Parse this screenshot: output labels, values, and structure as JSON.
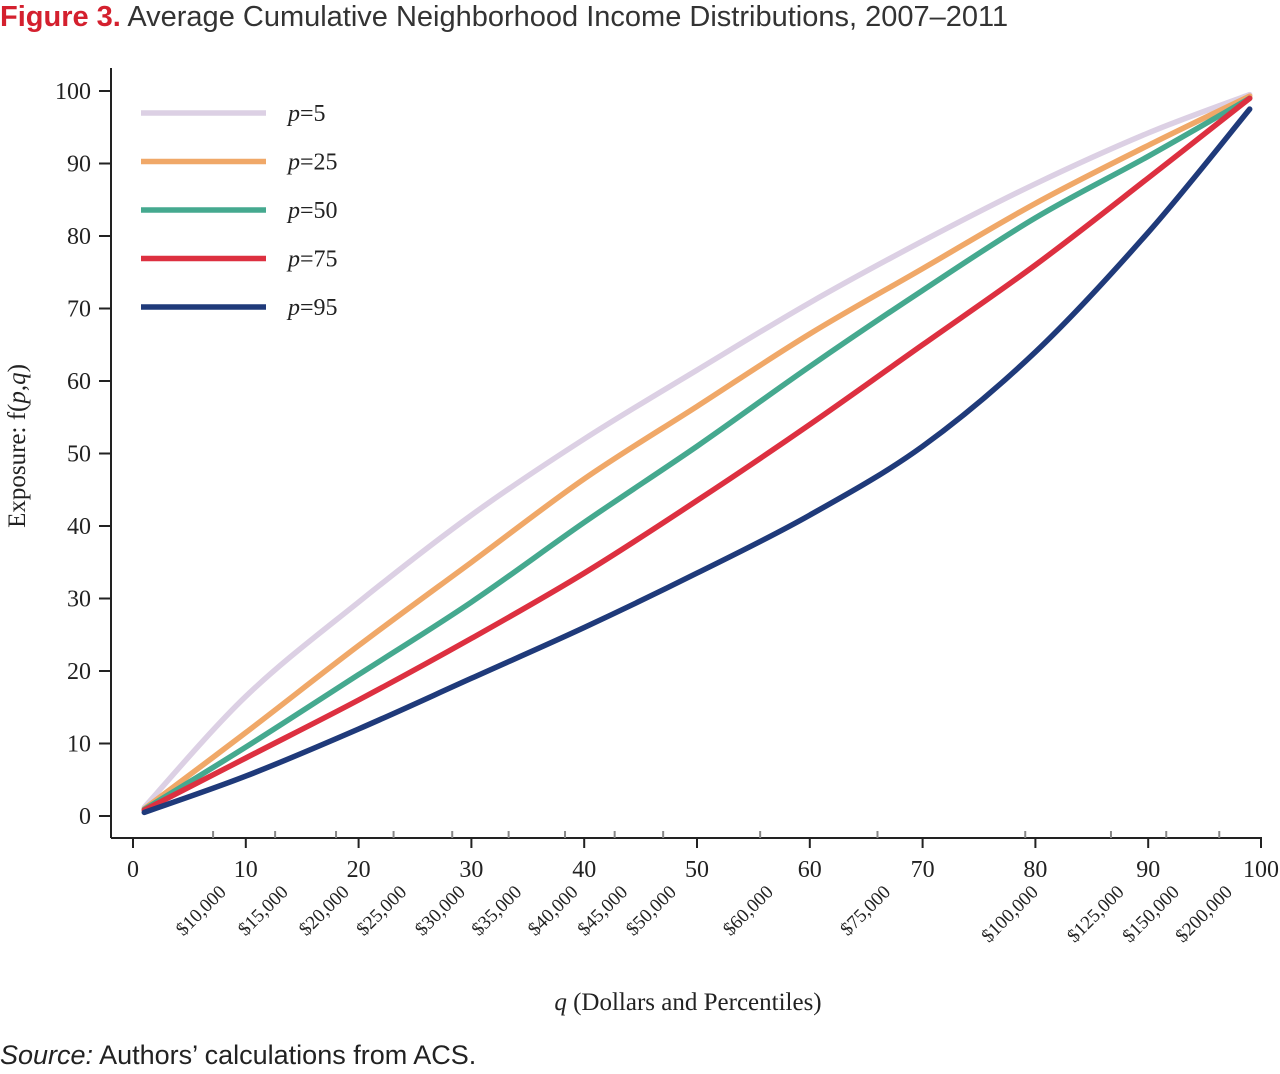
{
  "figure": {
    "label": "Figure 3.",
    "title": "Average Cumulative Neighborhood Income Distributions, 2007–2011",
    "source_label": "Source:",
    "source_text": "Authors’ calculations from ACS."
  },
  "chart_data": {
    "type": "line",
    "title": "Average Cumulative Neighborhood Income Distributions, 2007–2011",
    "xlabel": "q (Dollars and Percentiles)",
    "ylabel": "Exposure: f(p,q)",
    "xlim": [
      0,
      100
    ],
    "ylim": [
      0,
      100
    ],
    "x_ticks": [
      0,
      10,
      20,
      30,
      40,
      50,
      60,
      70,
      80,
      90,
      100
    ],
    "y_ticks": [
      0,
      10,
      20,
      30,
      40,
      50,
      60,
      70,
      80,
      90,
      100
    ],
    "dollar_ticks": [
      {
        "x": 7.1,
        "label": "$10,000"
      },
      {
        "x": 12.6,
        "label": "$15,000"
      },
      {
        "x": 18.0,
        "label": "$20,000"
      },
      {
        "x": 23.1,
        "label": "$25,000"
      },
      {
        "x": 28.3,
        "label": "$30,000"
      },
      {
        "x": 33.3,
        "label": "$35,000"
      },
      {
        "x": 38.3,
        "label": "$40,000"
      },
      {
        "x": 42.7,
        "label": "$45,000"
      },
      {
        "x": 47.0,
        "label": "$50,000"
      },
      {
        "x": 55.6,
        "label": "$60,000"
      },
      {
        "x": 66.0,
        "label": "$75,000"
      },
      {
        "x": 79.1,
        "label": "$100,000"
      },
      {
        "x": 86.7,
        "label": "$125,000"
      },
      {
        "x": 91.6,
        "label": "$150,000"
      },
      {
        "x": 96.3,
        "label": "$200,000"
      }
    ],
    "grid": false,
    "legend_position": "top-left",
    "series": [
      {
        "name": "p=5",
        "p_label": "p",
        "p_value": "=5",
        "color": "#dcd0e4",
        "x": [
          1,
          10,
          20,
          30,
          40,
          50,
          60,
          70,
          80,
          90,
          99
        ],
        "y": [
          1.2,
          16.5,
          29.5,
          41.5,
          52.0,
          61.5,
          70.8,
          79.3,
          87.2,
          94.2,
          99.5
        ]
      },
      {
        "name": "p=25",
        "p_label": "p",
        "p_value": "=25",
        "color": "#f0a868",
        "x": [
          1,
          10,
          20,
          30,
          40,
          50,
          60,
          70,
          80,
          90,
          99
        ],
        "y": [
          1.0,
          11.5,
          23.5,
          35.0,
          46.5,
          56.5,
          66.5,
          75.5,
          84.5,
          92.5,
          99.3
        ]
      },
      {
        "name": "p=50",
        "p_label": "p",
        "p_value": "=50",
        "color": "#45a98f",
        "x": [
          1,
          10,
          20,
          30,
          40,
          50,
          60,
          70,
          80,
          90,
          99
        ],
        "y": [
          0.9,
          9.5,
          19.5,
          29.5,
          40.5,
          51.0,
          62.0,
          72.5,
          82.5,
          91.0,
          99.0
        ]
      },
      {
        "name": "p=75",
        "p_label": "p",
        "p_value": "=75",
        "color": "#dd3040",
        "x": [
          1,
          10,
          20,
          30,
          40,
          50,
          60,
          70,
          80,
          90,
          99
        ],
        "y": [
          0.8,
          8.0,
          16.0,
          24.5,
          33.5,
          43.5,
          54.0,
          65.0,
          76.0,
          88.0,
          99.0
        ]
      },
      {
        "name": "p=95",
        "p_label": "p",
        "p_value": "=95",
        "color": "#1f3a7a",
        "x": [
          1,
          10,
          20,
          30,
          40,
          50,
          60,
          70,
          80,
          90,
          99
        ],
        "y": [
          0.5,
          5.5,
          12.0,
          19.0,
          26.0,
          33.5,
          41.5,
          51.0,
          64.0,
          80.5,
          97.5
        ]
      }
    ]
  }
}
